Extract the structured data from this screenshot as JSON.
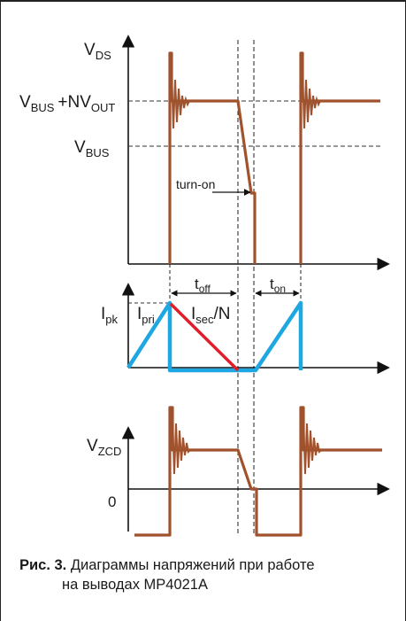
{
  "labels": {
    "vds_main": "V",
    "vds_sub": "DS",
    "vbus_nv_main": "V",
    "vbus_nv_sub": "BUS",
    "vbus_nv_plus": "+NV",
    "vbus_nv_sub2": "OUT",
    "vbus_main": "V",
    "vbus_sub": "BUS",
    "turn_on": "turn-on",
    "toff_main": "t",
    "toff_sub": "off",
    "ton_main": "t",
    "ton_sub": "on",
    "ipk_main": "I",
    "ipk_sub": "pk",
    "ipri_main": "I",
    "ipri_sub": "pri",
    "isec_main": "I",
    "isec_sub": "sec",
    "isec_suffix": "/N",
    "vzcd_main": "V",
    "vzcd_sub": "ZCD",
    "zero": "0"
  },
  "caption": {
    "number": "Рис. 3.",
    "line1": " Диаграммы напряжений при работе",
    "line2": "на выводах MP4021A"
  },
  "colors": {
    "voltage_trace": "#a0522d",
    "primary_current": "#1ea7e1",
    "secondary_current": "#e11d2a",
    "axis": "#111111",
    "guide": "#222222"
  }
}
